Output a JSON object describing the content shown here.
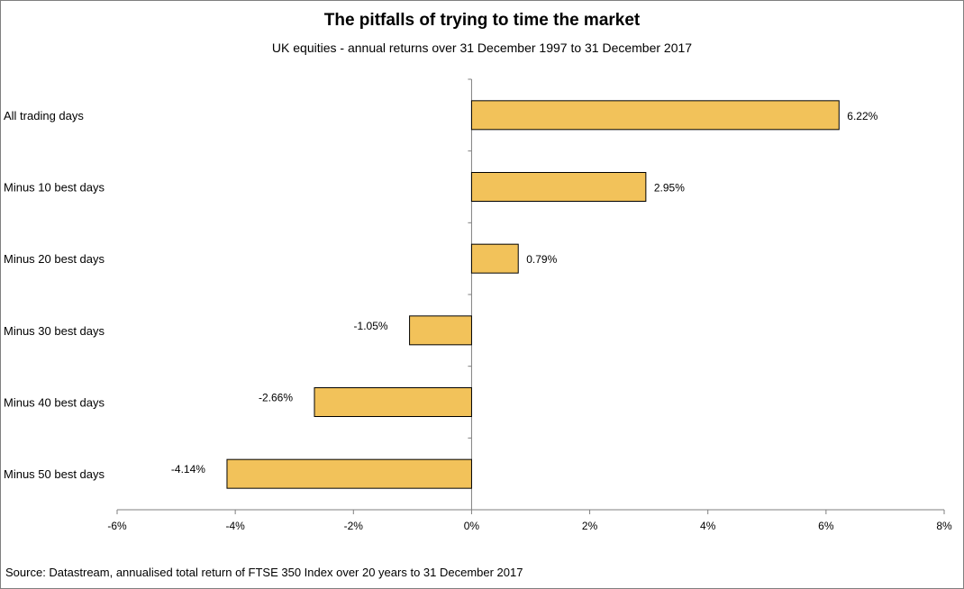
{
  "title": "The pitfalls of trying to time the market",
  "subtitle": "UK equities - annual returns over 31 December 1997 to 31 December 2017",
  "source": "Source: Datastream, annualised total return of FTSE 350 Index over 20 years to 31 December 2017",
  "colors": {
    "bar": "#F2C25A",
    "bar_stroke": "#000000",
    "axis": "#7f7f7f"
  },
  "chart_data": {
    "type": "bar",
    "orientation": "horizontal",
    "title": "The pitfalls of trying to time the market",
    "subtitle": "UK equities - annual returns over 31 December 1997 to 31 December 2017",
    "categories": [
      "All trading days",
      "Minus 10 best days",
      "Minus 20 best days",
      "Minus 30 best days",
      "Minus 40 best days",
      "Minus 50 best days"
    ],
    "values": [
      6.22,
      2.95,
      0.79,
      -1.05,
      -2.66,
      -4.14
    ],
    "data_labels": [
      "6.22%",
      "2.95%",
      "0.79%",
      "-1.05%",
      "-2.66%",
      "-4.14%"
    ],
    "xlim": [
      -6,
      8
    ],
    "xticks": [
      -6,
      -4,
      -2,
      0,
      2,
      4,
      6,
      8
    ],
    "xtick_labels": [
      "-6%",
      "-4%",
      "-2%",
      "0%",
      "2%",
      "4%",
      "6%",
      "8%"
    ],
    "grid": false,
    "legend": "none"
  }
}
